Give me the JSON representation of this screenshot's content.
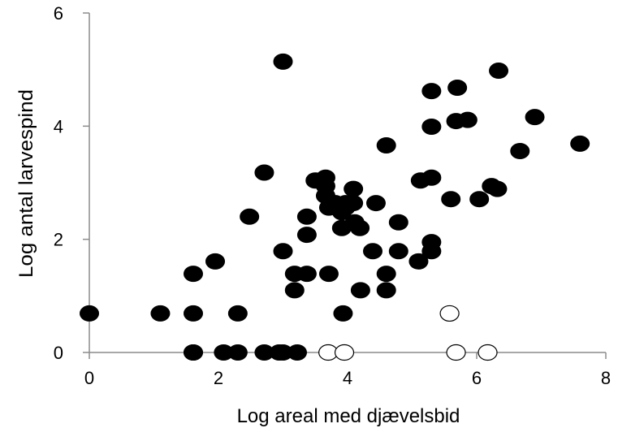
{
  "chart_data": {
    "type": "scatter",
    "title": "",
    "xlabel": "Log areal med djævelsbid",
    "ylabel": "Log antal larvespind",
    "xlim": [
      0,
      8
    ],
    "ylim": [
      0,
      6
    ],
    "xticks": [
      "0",
      "2",
      "4",
      "6",
      "8"
    ],
    "yticks": [
      "0",
      "2",
      "4",
      "6"
    ],
    "grid": false,
    "legend": "none",
    "series": [
      {
        "marker": "filled-circle",
        "color": "#000000",
        "points": [
          [
            0,
            0.69
          ],
          [
            1.1,
            0.69
          ],
          [
            1.61,
            0.69
          ],
          [
            2.3,
            0.69
          ],
          [
            3.93,
            0.69
          ],
          [
            1.61,
            0
          ],
          [
            1.61,
            0
          ],
          [
            2.08,
            0
          ],
          [
            2.3,
            0
          ],
          [
            2.71,
            0
          ],
          [
            2.94,
            0
          ],
          [
            3.0,
            0
          ],
          [
            3.22,
            0
          ],
          [
            1.61,
            1.39
          ],
          [
            1.95,
            1.61
          ],
          [
            2.48,
            2.4
          ],
          [
            2.71,
            3.18
          ],
          [
            3.0,
            5.14
          ],
          [
            3.0,
            1.79
          ],
          [
            3.18,
            1.1
          ],
          [
            3.18,
            1.39
          ],
          [
            3.37,
            1.39
          ],
          [
            3.37,
            2.4
          ],
          [
            3.37,
            2.08
          ],
          [
            3.5,
            3.04
          ],
          [
            3.66,
            3.09
          ],
          [
            3.66,
            2.94
          ],
          [
            3.66,
            2.77
          ],
          [
            3.71,
            2.56
          ],
          [
            3.71,
            1.39
          ],
          [
            3.81,
            2.64
          ],
          [
            3.91,
            2.2
          ],
          [
            3.91,
            2.48
          ],
          [
            3.97,
            2.64
          ],
          [
            3.97,
            2.56
          ],
          [
            4.09,
            2.89
          ],
          [
            4.09,
            2.64
          ],
          [
            4.11,
            2.3
          ],
          [
            4.19,
            2.2
          ],
          [
            4.2,
            1.1
          ],
          [
            4.39,
            1.79
          ],
          [
            4.44,
            2.64
          ],
          [
            4.6,
            1.1
          ],
          [
            4.6,
            1.39
          ],
          [
            4.6,
            3.66
          ],
          [
            4.79,
            2.3
          ],
          [
            4.79,
            1.79
          ],
          [
            5.1,
            1.61
          ],
          [
            5.13,
            3.04
          ],
          [
            5.3,
            3.09
          ],
          [
            5.3,
            1.79
          ],
          [
            5.3,
            1.95
          ],
          [
            5.3,
            3.99
          ],
          [
            5.3,
            4.62
          ],
          [
            5.6,
            2.71
          ],
          [
            5.68,
            4.09
          ],
          [
            5.7,
            4.68
          ],
          [
            5.86,
            4.11
          ],
          [
            6.04,
            2.71
          ],
          [
            6.23,
            2.94
          ],
          [
            6.32,
            2.89
          ],
          [
            6.34,
            4.98
          ],
          [
            6.67,
            3.56
          ],
          [
            6.9,
            4.16
          ],
          [
            7.6,
            3.69
          ]
        ]
      },
      {
        "marker": "open-circle",
        "color": "#000000",
        "points": [
          [
            3.7,
            0
          ],
          [
            3.95,
            0
          ],
          [
            5.58,
            0.69
          ],
          [
            5.68,
            0
          ],
          [
            6.17,
            0
          ]
        ]
      }
    ]
  }
}
